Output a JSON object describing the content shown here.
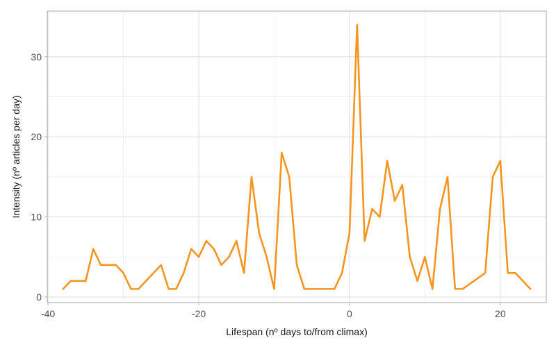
{
  "chart_data": {
    "type": "line",
    "xlabel": "Lifespan (nº days to/from climax)",
    "ylabel": "Intensity (nº articles per day)",
    "xlim": [
      -40.1,
      26.1
    ],
    "ylim": [
      -0.7,
      35.7
    ],
    "x_ticks": [
      -40,
      -20,
      0,
      20
    ],
    "y_ticks": [
      0,
      10,
      20,
      30
    ],
    "x_minor": [
      -30,
      -10,
      10
    ],
    "y_minor": [
      5,
      15,
      25
    ],
    "grid": true,
    "series": [
      {
        "color": "#f7941d",
        "x": [
          -38,
          -37,
          -36,
          -35,
          -34,
          -33,
          -32,
          -31,
          -30,
          -29,
          -28,
          -25,
          -24,
          -23,
          -22,
          -21,
          -20,
          -19,
          -18,
          -17,
          -16,
          -15,
          -14,
          -13,
          -12,
          -11,
          -10,
          -9,
          -8,
          -7,
          -6,
          -5,
          -4,
          -3,
          -2,
          -1,
          0,
          1,
          2,
          3,
          4,
          5,
          6,
          7,
          8,
          9,
          10,
          11,
          12,
          13,
          14,
          15,
          18,
          19,
          20,
          21,
          22,
          24
        ],
        "y": [
          1,
          2,
          2,
          2,
          6,
          4,
          4,
          4,
          3,
          1,
          1,
          4,
          1,
          1,
          3,
          6,
          5,
          7,
          6,
          4,
          5,
          7,
          3,
          15,
          8,
          5,
          1,
          18,
          15,
          4,
          1,
          1,
          1,
          1,
          1,
          3,
          8,
          34,
          7,
          11,
          10,
          17,
          12,
          14,
          5,
          2,
          5,
          1,
          11,
          15,
          1,
          1,
          3,
          15,
          17,
          3,
          3,
          1
        ]
      }
    ]
  }
}
